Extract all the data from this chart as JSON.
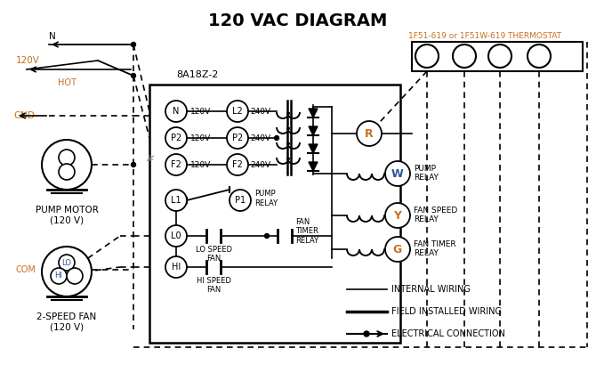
{
  "title": "120 VAC DIAGRAM",
  "title_fontsize": 14,
  "bg_color": "#ffffff",
  "text_color": "#000000",
  "orange_color": "#c87020",
  "blue_color": "#3050a0",
  "thermostat_label": "1F51-619 or 1F51W-619 THERMOSTAT",
  "board_label": "8A18Z-2",
  "pump_motor_label": "PUMP MOTOR\n(120 V)",
  "fan_label": "2-SPEED FAN\n(120 V)",
  "terminal_labels": [
    "R",
    "W",
    "Y",
    "G"
  ],
  "term_colors": [
    "#c87020",
    "#3050a0",
    "#c87020",
    "#c87020"
  ],
  "in_labels": [
    "N",
    "P2",
    "F2"
  ],
  "in_volts": [
    "120V",
    "120V",
    "120V"
  ],
  "out_labels": [
    "L2",
    "P2",
    "F2"
  ],
  "out_volts": [
    "240V",
    "240V",
    "240V"
  ],
  "relay_names": [
    "PUMP\nRELAY",
    "FAN SPEED\nRELAY",
    "FAN TIMER\nRELAY"
  ],
  "relay_term": [
    "W",
    "Y",
    "G"
  ],
  "relay_term_colors": [
    "#3050a0",
    "#c87020",
    "#c87020"
  ]
}
